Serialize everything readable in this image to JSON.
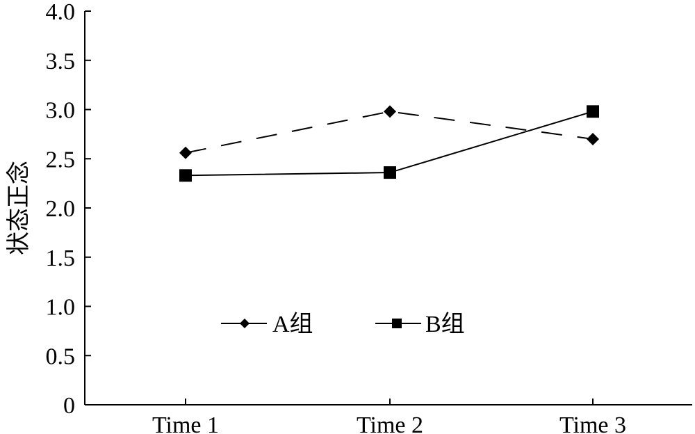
{
  "chart_data": {
    "type": "line",
    "title": "",
    "xlabel": "",
    "ylabel": "状态正念",
    "categories": [
      "Time 1",
      "Time 2",
      "Time 3"
    ],
    "ylim": [
      0,
      4.0
    ],
    "yticks": [
      "0",
      "0.5",
      "1.0",
      "1.5",
      "2.0",
      "2.5",
      "3.0",
      "3.5",
      "4.0"
    ],
    "ytick_values": [
      0,
      0.5,
      1.0,
      1.5,
      2.0,
      2.5,
      3.0,
      3.5,
      4.0
    ],
    "grid": false,
    "legend_position": "bottom-center",
    "series": [
      {
        "name": "A组",
        "values": [
          2.56,
          2.98,
          2.7
        ],
        "line_style": "dashed",
        "marker": "diamond",
        "color": "#000000"
      },
      {
        "name": "B组",
        "values": [
          2.33,
          2.36,
          2.98
        ],
        "line_style": "solid",
        "marker": "square",
        "color": "#000000"
      }
    ]
  }
}
